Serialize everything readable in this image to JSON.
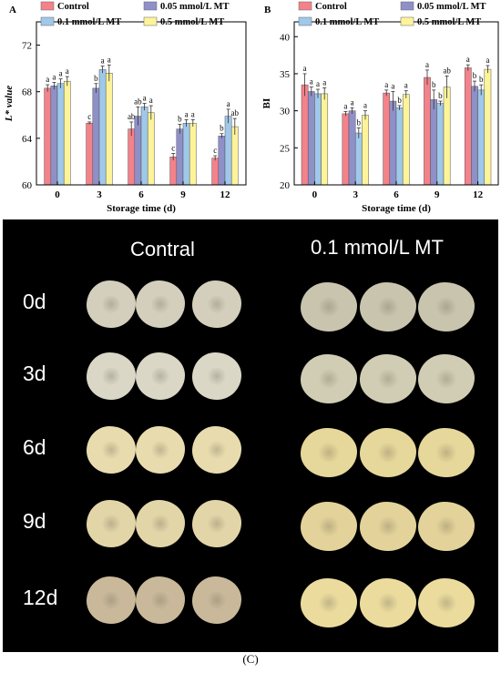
{
  "panel_labels": [
    "A",
    "B"
  ],
  "chart_data": [
    {
      "type": "bar",
      "panel": "A",
      "xlabel": "Storage time (d)",
      "ylabel": "L* value",
      "categories": [
        "0",
        "3",
        "6",
        "9",
        "12"
      ],
      "ylim": [
        60,
        74
      ],
      "yticks": [
        60,
        64,
        68,
        72
      ],
      "legend": "top",
      "series": [
        {
          "name": "Control",
          "color": "#f4828a",
          "values": [
            68.3,
            65.3,
            64.8,
            62.4,
            62.3
          ],
          "errors": [
            0.3,
            0.1,
            0.6,
            0.3,
            0.2
          ],
          "letters": [
            "a",
            "c",
            "ab",
            "c",
            "c"
          ]
        },
        {
          "name": "0.05 mmol/L MT",
          "color": "#8f90c8",
          "values": [
            68.5,
            68.3,
            65.9,
            64.8,
            64.2
          ],
          "errors": [
            0.3,
            0.4,
            0.8,
            0.4,
            0.2
          ],
          "letters": [
            "a",
            "b",
            "ab",
            "b",
            "b"
          ]
        },
        {
          "name": "0.1 mmol/L MT",
          "color": "#9fc8ea",
          "values": [
            68.7,
            69.9,
            66.7,
            65.3,
            65.9
          ],
          "errors": [
            0.4,
            0.3,
            0.3,
            0.3,
            0.6
          ],
          "letters": [
            "a",
            "a",
            "a",
            "a",
            "a"
          ]
        },
        {
          "name": "0.5 mmol/L MT",
          "color": "#fdf49a",
          "values": [
            68.9,
            69.6,
            66.2,
            65.3,
            65.0
          ],
          "errors": [
            0.4,
            0.7,
            0.6,
            0.3,
            0.7
          ],
          "letters": [
            "a",
            "a",
            "a",
            "a",
            "ab"
          ]
        }
      ]
    },
    {
      "type": "bar",
      "panel": "B",
      "xlabel": "Storage time (d)",
      "ylabel": "BI",
      "categories": [
        "0",
        "3",
        "6",
        "9",
        "12"
      ],
      "ylim": [
        20,
        42
      ],
      "yticks": [
        20,
        25,
        30,
        35,
        40
      ],
      "legend": "top",
      "series": [
        {
          "name": "Control",
          "color": "#f4828a",
          "values": [
            33.5,
            29.6,
            32.4,
            34.5,
            35.8
          ],
          "errors": [
            1.5,
            0.3,
            0.4,
            1.0,
            0.4
          ],
          "letters": [
            "a",
            "a",
            "a",
            "a",
            "a"
          ]
        },
        {
          "name": "0.05 mmol/L MT",
          "color": "#8f90c8",
          "values": [
            32.6,
            30.0,
            31.3,
            31.5,
            33.3
          ],
          "errors": [
            0.6,
            0.4,
            1.3,
            1.3,
            0.7
          ],
          "letters": [
            "a",
            "a",
            "a",
            "b",
            "b"
          ]
        },
        {
          "name": "0.1 mmol/L MT",
          "color": "#9fc8ea",
          "values": [
            32.3,
            27.0,
            30.4,
            31.0,
            32.8
          ],
          "errors": [
            0.6,
            0.7,
            0.3,
            0.3,
            0.7
          ],
          "letters": [
            "a",
            "b",
            "b",
            "b",
            "b"
          ]
        },
        {
          "name": "0.5 mmol/L MT",
          "color": "#fdf49a",
          "values": [
            32.3,
            29.4,
            32.2,
            33.2,
            35.6
          ],
          "errors": [
            0.8,
            0.6,
            0.5,
            1.5,
            0.5
          ],
          "letters": [
            "a",
            "a",
            "a",
            "ab",
            "a"
          ]
        }
      ]
    }
  ],
  "photo": {
    "col_headers": [
      "Contral",
      "0.1 mmol/L MT"
    ],
    "rows": [
      {
        "day": "0d",
        "control_color": "#d3cfbc",
        "mt_color": "#c9c4ad"
      },
      {
        "day": "3d",
        "control_color": "#dad7c6",
        "mt_color": "#d1cdb4"
      },
      {
        "day": "6d",
        "control_color": "#e8dcae",
        "mt_color": "#e6d79a"
      },
      {
        "day": "9d",
        "control_color": "#e2d5a8",
        "mt_color": "#e3d39a"
      },
      {
        "day": "12d",
        "control_color": "#c9b99a",
        "mt_color": "#ebdc9e"
      }
    ]
  },
  "caption": "(C)"
}
